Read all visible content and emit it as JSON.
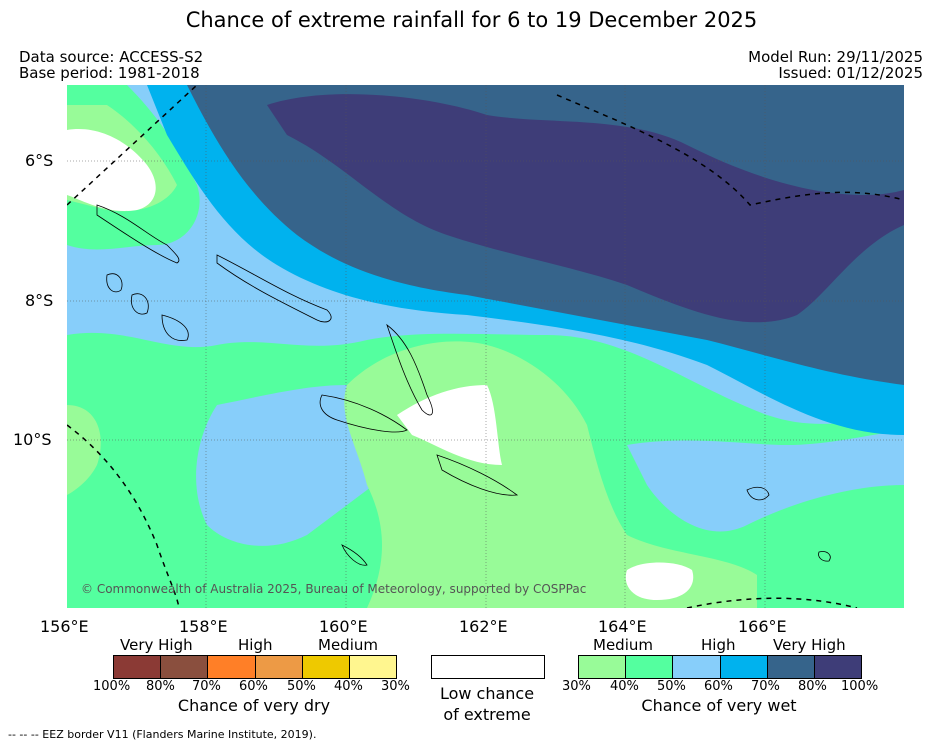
{
  "title": "Chance of extreme rainfall for 6 to 19 December 2025",
  "data_source": "Data source: ACCESS-S2",
  "base_period": "Base period: 1981-2018",
  "model_run": "Model Run: 29/11/2025",
  "issued": "Issued: 01/12/2025",
  "map": {
    "latitude_labels": [
      "6°S",
      "8°S",
      "10°S"
    ],
    "longitude_labels": [
      "156°E",
      "158°E",
      "160°E",
      "162°E",
      "164°E",
      "166°E"
    ],
    "copyright": "© Commonwealth of Australia 2025, Bureau of Meteorology, supported by COSPPac"
  },
  "legend": {
    "dry": {
      "categories": [
        "Very High",
        "High",
        "Medium"
      ],
      "ticks": [
        "100%",
        "80%",
        "70%",
        "60%",
        "50%",
        "40%",
        "30%"
      ],
      "colors": [
        "#8b3a35",
        "#8a4f3e",
        "#ff7f27",
        "#ed9a45",
        "#eec900",
        "#fff68f"
      ],
      "caption": "Chance of very dry"
    },
    "low": {
      "caption_line1": "Low chance",
      "caption_line2": "of extreme",
      "color": "#ffffff"
    },
    "wet": {
      "categories": [
        "Medium",
        "High",
        "Very High"
      ],
      "ticks": [
        "30%",
        "40%",
        "50%",
        "60%",
        "70%",
        "80%",
        "100%"
      ],
      "colors": [
        "#98fb98",
        "#54ff9f",
        "#87cefa",
        "#00b2ee",
        "#36648b",
        "#3e3d78"
      ],
      "caption": "Chance of very wet"
    }
  },
  "footer": "-- -- -- EEZ border V11 (Flanders Marine Institute, 2019)."
}
